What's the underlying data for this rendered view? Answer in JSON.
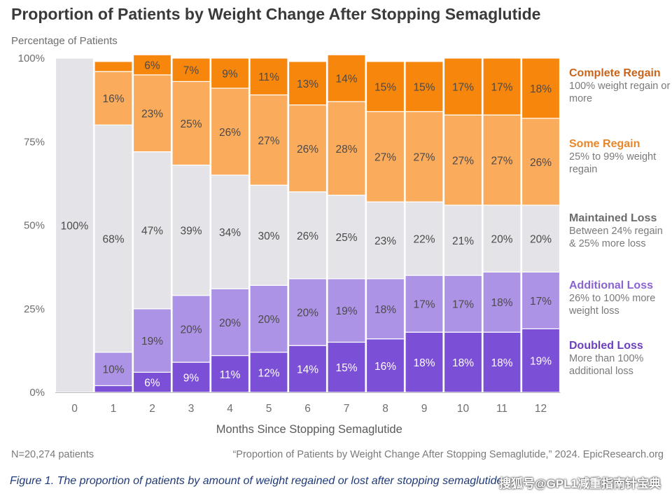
{
  "title": "Proportion of Patients by Weight Change After Stopping Semaglutide",
  "y_axis_label": "Percentage of Patients",
  "x_axis_label": "Months Since Stopping Semaglutide",
  "footer_left": "N=20,274 patients",
  "footer_right": "“Proportion of Patients by Weight Change After Stopping Semaglutide,” 2024. EpicResearch.org",
  "caption": "Figure 1. The proportion of patients by amount of weight regained or lost after stopping semaglutide.",
  "watermark": "搜狐号@GPL1减重指南针宝典",
  "legend": [
    {
      "title": "Complete Regain",
      "desc": "100% weight regain or more",
      "color": "#c8651b"
    },
    {
      "title": "Some Regain",
      "desc": "25% to 99% weight regain",
      "color": "#e8862a"
    },
    {
      "title": "Maintained Loss",
      "desc": "Between 24% regain & 25% more loss",
      "color": "#6b6b6b"
    },
    {
      "title": "Additional Loss",
      "desc": "26% to 100% more weight loss",
      "color": "#8a63d2"
    },
    {
      "title": "Doubled Loss",
      "desc": "More than 100% additional loss",
      "color": "#6a3fc0"
    }
  ],
  "chart_data": {
    "type": "bar",
    "stacked": true,
    "percent": true,
    "categories": [
      "0",
      "1",
      "2",
      "3",
      "4",
      "5",
      "6",
      "7",
      "8",
      "9",
      "10",
      "11",
      "12"
    ],
    "ylim": [
      0,
      100
    ],
    "yticks": [
      "0%",
      "25%",
      "50%",
      "75%",
      "100%"
    ],
    "series": [
      {
        "name": "Doubled Loss",
        "color": "#7b4fd6",
        "text_color": "#ffffff",
        "values": [
          0,
          2,
          6,
          9,
          11,
          12,
          14,
          15,
          16,
          18,
          18,
          18,
          19
        ],
        "labels": [
          "",
          "",
          "6%",
          "9%",
          "11%",
          "12%",
          "14%",
          "15%",
          "16%",
          "18%",
          "18%",
          "18%",
          "19%"
        ]
      },
      {
        "name": "Additional Loss",
        "color": "#ad93e6",
        "text_color": "#4a4a4a",
        "values": [
          0,
          10,
          19,
          20,
          20,
          20,
          20,
          19,
          18,
          17,
          17,
          18,
          17
        ],
        "labels": [
          "",
          "10%",
          "19%",
          "20%",
          "20%",
          "20%",
          "20%",
          "19%",
          "18%",
          "17%",
          "17%",
          "18%",
          "17%"
        ]
      },
      {
        "name": "Maintained Loss",
        "color": "#e4e3e8",
        "text_color": "#4a4a4a",
        "values": [
          100,
          68,
          47,
          39,
          34,
          30,
          26,
          25,
          23,
          22,
          21,
          20,
          20
        ],
        "labels": [
          "100%",
          "68%",
          "47%",
          "39%",
          "34%",
          "30%",
          "26%",
          "25%",
          "23%",
          "22%",
          "21%",
          "20%",
          "20%"
        ]
      },
      {
        "name": "Some Regain",
        "color": "#fbab5c",
        "text_color": "#4a4a4a",
        "values": [
          0,
          16,
          23,
          25,
          26,
          27,
          26,
          28,
          27,
          27,
          27,
          27,
          26
        ],
        "labels": [
          "",
          "16%",
          "23%",
          "25%",
          "26%",
          "27%",
          "26%",
          "28%",
          "27%",
          "27%",
          "27%",
          "27%",
          "26%"
        ]
      },
      {
        "name": "Complete Regain",
        "color": "#f7860c",
        "text_color": "#4a4a4a",
        "values": [
          0,
          3,
          6,
          7,
          9,
          11,
          13,
          14,
          15,
          15,
          17,
          17,
          18
        ],
        "labels": [
          "",
          "",
          "6%",
          "7%",
          "9%",
          "11%",
          "13%",
          "14%",
          "15%",
          "15%",
          "17%",
          "17%",
          "18%"
        ]
      }
    ]
  }
}
